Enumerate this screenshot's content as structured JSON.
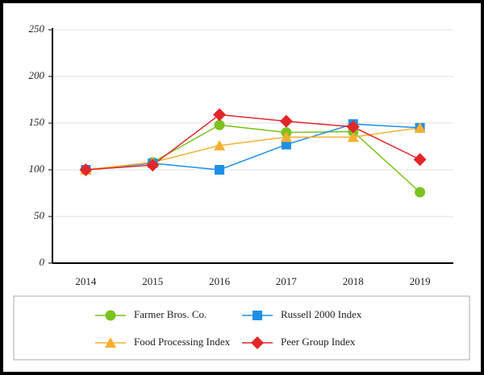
{
  "chart_data": {
    "type": "line",
    "categories": [
      "2014",
      "2015",
      "2016",
      "2017",
      "2018",
      "2019"
    ],
    "series": [
      {
        "name": "Farmer Bros. Co.",
        "color": "#7cc21f",
        "marker": "circle",
        "values": [
          100,
          108,
          148,
          140,
          141,
          76
        ]
      },
      {
        "name": "Russell 2000 Index",
        "color": "#1e8fe6",
        "marker": "square",
        "values": [
          100,
          107,
          100,
          127,
          149,
          145
        ]
      },
      {
        "name": "Food Processing Index",
        "color": "#f5b030",
        "marker": "triangle",
        "values": [
          100,
          108,
          126,
          135,
          135,
          145
        ]
      },
      {
        "name": "Peer Group Index",
        "color": "#e2262b",
        "marker": "diamond",
        "values": [
          100,
          105,
          159,
          152,
          146,
          111
        ]
      }
    ],
    "ylim": [
      0,
      250
    ],
    "yticks": [
      0,
      50,
      100,
      150,
      200,
      250
    ],
    "grid": true,
    "legend": "bottom"
  }
}
